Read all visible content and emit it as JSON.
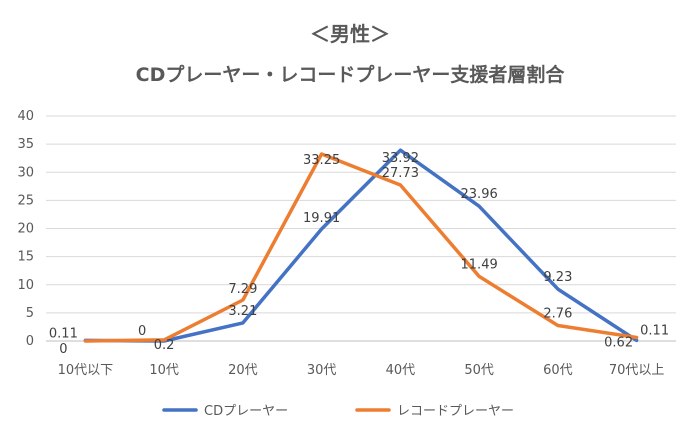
{
  "chart_data": {
    "type": "line",
    "title": "＜男性＞",
    "subtitle": "CDプレーヤー・レコードプレーヤー支援者層割合",
    "xlabel": "",
    "ylabel": "",
    "categories": [
      "10代以下",
      "10代",
      "20代",
      "30代",
      "40代",
      "50代",
      "60代",
      "70代以上"
    ],
    "ylim": [
      0,
      40
    ],
    "yticks": [
      0,
      5,
      10,
      15,
      20,
      25,
      30,
      35,
      40
    ],
    "grid": true,
    "legend": "bottom",
    "series": [
      {
        "name": "CDプレーヤー",
        "color": "#4472C4",
        "values": [
          0.11,
          0,
          3.21,
          19.91,
          33.92,
          23.96,
          9.23,
          0.11
        ],
        "labels": [
          "0.11",
          "0",
          "3.21",
          "19.91",
          "33.92",
          "23.96",
          "9.23",
          "0.11"
        ]
      },
      {
        "name": "レコードプレーヤー",
        "color": "#ED7D31",
        "values": [
          0,
          0.2,
          7.29,
          33.25,
          27.73,
          11.49,
          2.76,
          0.62
        ],
        "labels": [
          "0",
          "0.2",
          "7.29",
          "33.25",
          "27.73",
          "11.49",
          "2.76",
          "0.62"
        ]
      }
    ],
    "gridline_color": "#D9D9D9",
    "axis_color": "#BFBFBF"
  }
}
